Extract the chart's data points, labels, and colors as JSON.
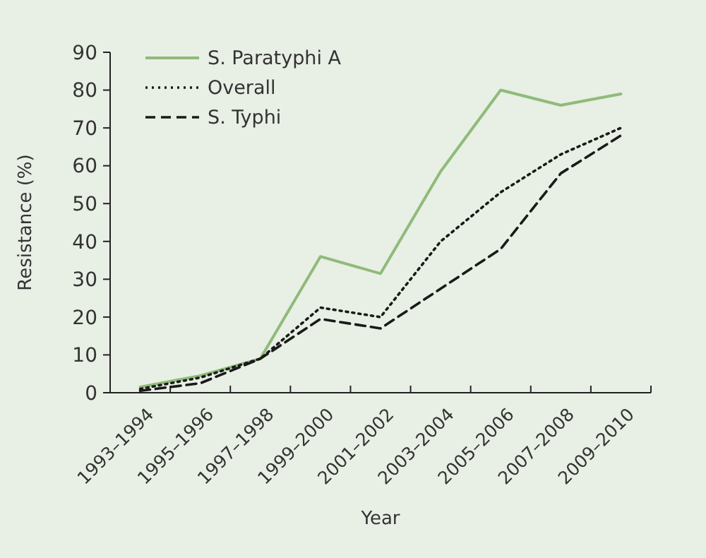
{
  "chart_data": {
    "type": "line",
    "xlabel": "Year",
    "ylabel": "Resistance (%)",
    "categories": [
      "1993–1994",
      "1995–1996",
      "1997–1998",
      "1999–2000",
      "2001–2002",
      "2003–2004",
      "2005–2006",
      "2007–2008",
      "2009–2010"
    ],
    "ylim": [
      0,
      90
    ],
    "yticks": [
      0,
      10,
      20,
      30,
      40,
      50,
      60,
      70,
      80,
      90
    ],
    "grid": false,
    "legend": "top left",
    "marker": "none",
    "series": [
      {
        "name": "S. Paratyphi A",
        "color": "#8fbb7a",
        "line_style": "solid",
        "values": [
          1.5,
          4.5,
          9,
          36,
          31.5,
          58.5,
          80,
          76,
          79
        ]
      },
      {
        "name": "Overall",
        "color": "#1a1a1a",
        "line_style": "dotted",
        "values": [
          1,
          4,
          9,
          22.5,
          20,
          40,
          53,
          63,
          70
        ]
      },
      {
        "name": "S. Typhi",
        "color": "#1a1a1a",
        "line_style": "dashed",
        "values": [
          0.5,
          2.5,
          9,
          19.5,
          17,
          27.5,
          38,
          58,
          68
        ]
      }
    ]
  }
}
